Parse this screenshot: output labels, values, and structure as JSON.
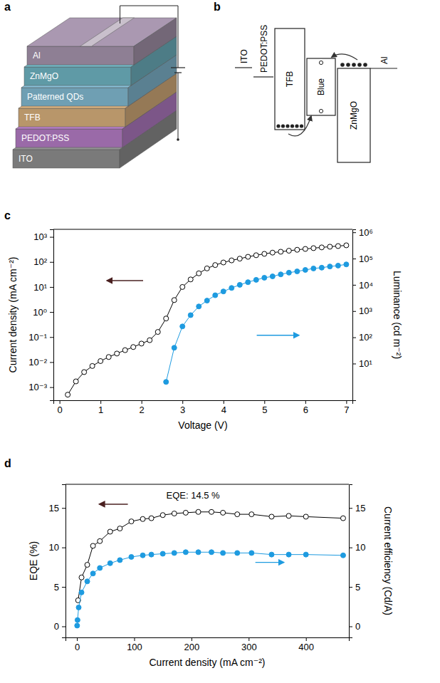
{
  "panel_a": {
    "letter": "a",
    "layers": [
      "Al",
      "ZnMgO",
      "Patterned QDs",
      "TFB",
      "PEDOT:PSS",
      "ITO"
    ]
  },
  "panel_b": {
    "letter": "b",
    "labels": [
      "ITO",
      "PEDOT:PSS",
      "TFB",
      "Blue",
      "ZnMgO",
      "Al"
    ]
  },
  "chart_data": [
    {
      "panel_label": "c",
      "type": "line",
      "log": "y",
      "x_label": "Voltage (V)",
      "y_label": "Current density (mA cm⁻²)",
      "y2_label": "Luminance (cd m⁻²)",
      "xlim": [
        -0.15,
        7.15
      ],
      "xticks": [
        0,
        1,
        2,
        3,
        4,
        5,
        6,
        7
      ],
      "ylim": [
        0.0003,
        2000
      ],
      "yticks": [
        {
          "value": 0.001,
          "label": "10⁻³"
        },
        {
          "value": 0.01,
          "label": "10⁻²"
        },
        {
          "value": 0.1,
          "label": "10⁻¹"
        },
        {
          "value": 1,
          "label": "10⁰"
        },
        {
          "value": 10,
          "label": "10¹"
        },
        {
          "value": 100,
          "label": "10²"
        },
        {
          "value": 1000,
          "label": "10³"
        }
      ],
      "y2lim": [
        0.4,
        1300000
      ],
      "y2ticks": [
        {
          "value": 10,
          "label": "10¹"
        },
        {
          "value": 100,
          "label": "10²"
        },
        {
          "value": 1000,
          "label": "10³"
        },
        {
          "value": 10000,
          "label": "10⁴"
        },
        {
          "value": 100000,
          "label": "10⁵"
        },
        {
          "value": 1000000,
          "label": "10⁶"
        }
      ],
      "series": [
        {
          "color": "#000000",
          "marker": "open-circle",
          "line_style": "solid",
          "x": [
            0.2,
            0.4,
            0.6,
            0.8,
            1.0,
            1.2,
            1.4,
            1.6,
            1.8,
            2.0,
            2.2,
            2.4,
            2.6,
            2.8,
            3.0,
            3.2,
            3.4,
            3.6,
            3.8,
            4.0,
            4.2,
            4.4,
            4.6,
            4.8,
            5.0,
            5.2,
            5.4,
            5.6,
            5.8,
            6.0,
            6.2,
            6.4,
            6.6,
            6.8,
            7.0
          ],
          "values": [
            0.0005,
            0.0017,
            0.004,
            0.007,
            0.011,
            0.016,
            0.022,
            0.03,
            0.04,
            0.055,
            0.075,
            0.16,
            0.55,
            3,
            10,
            20,
            35,
            55,
            75,
            95,
            115,
            135,
            160,
            185,
            210,
            235,
            255,
            280,
            305,
            330,
            355,
            380,
            405,
            430,
            460
          ]
        },
        {
          "color": "#1e9be0",
          "marker": "circle",
          "line_style": "solid",
          "axis": "y2",
          "x": [
            2.6,
            2.8,
            3.0,
            3.2,
            3.4,
            3.6,
            3.8,
            4.0,
            4.2,
            4.4,
            4.6,
            4.8,
            5.0,
            5.2,
            5.4,
            5.6,
            5.8,
            6.0,
            6.2,
            6.4,
            6.6,
            6.8,
            7.0
          ],
          "values": [
            2,
            40,
            260,
            700,
            1500,
            2500,
            4000,
            5600,
            7600,
            10000,
            12600,
            15500,
            18600,
            21000,
            25000,
            29000,
            32500,
            37000,
            42000,
            45000,
            50000,
            54000,
            60000
          ]
        }
      ]
    },
    {
      "panel_label": "d",
      "type": "line",
      "annotation": "EQE: 14.5 %",
      "x_label": "Current density (mA cm⁻²)",
      "y_label": "EQE (%)",
      "y2_label": "Current efficiency (Cd/A)",
      "xlim": [
        -20,
        475
      ],
      "xticks": [
        0,
        100,
        200,
        300,
        400
      ],
      "ylim": [
        -1.4,
        18
      ],
      "yticks": [
        0,
        5,
        10,
        15
      ],
      "y2lim": [
        -1.4,
        18
      ],
      "y2ticks": [
        0,
        5,
        10,
        15
      ],
      "series": [
        {
          "color": "#000000",
          "marker": "open-circle",
          "line_style": "solid",
          "x": [
            2,
            8,
            18,
            28,
            40,
            58,
            75,
            95,
            115,
            130,
            150,
            170,
            190,
            212,
            235,
            255,
            280,
            305,
            340,
            370,
            400,
            465
          ],
          "values": [
            3.3,
            6.2,
            7.8,
            10.2,
            10.8,
            12.0,
            12.4,
            13.3,
            13.6,
            13.7,
            14.1,
            14.3,
            14.4,
            14.5,
            14.5,
            14.4,
            14.2,
            14.2,
            13.9,
            14.0,
            13.9,
            13.7
          ]
        },
        {
          "color": "#1e9be0",
          "marker": "circle",
          "line_style": "solid",
          "axis": "y2",
          "x": [
            0.3,
            1,
            3,
            8,
            18,
            28,
            40,
            58,
            75,
            95,
            115,
            130,
            150,
            170,
            190,
            212,
            235,
            255,
            280,
            305,
            340,
            370,
            400,
            465
          ],
          "values": [
            0.1,
            0.8,
            2.4,
            4.3,
            5.7,
            6.7,
            7.4,
            8.0,
            8.4,
            8.8,
            9.0,
            9.1,
            9.2,
            9.3,
            9.4,
            9.4,
            9.4,
            9.3,
            9.3,
            9.3,
            9.1,
            9.1,
            9.1,
            9.0
          ]
        }
      ]
    }
  ]
}
